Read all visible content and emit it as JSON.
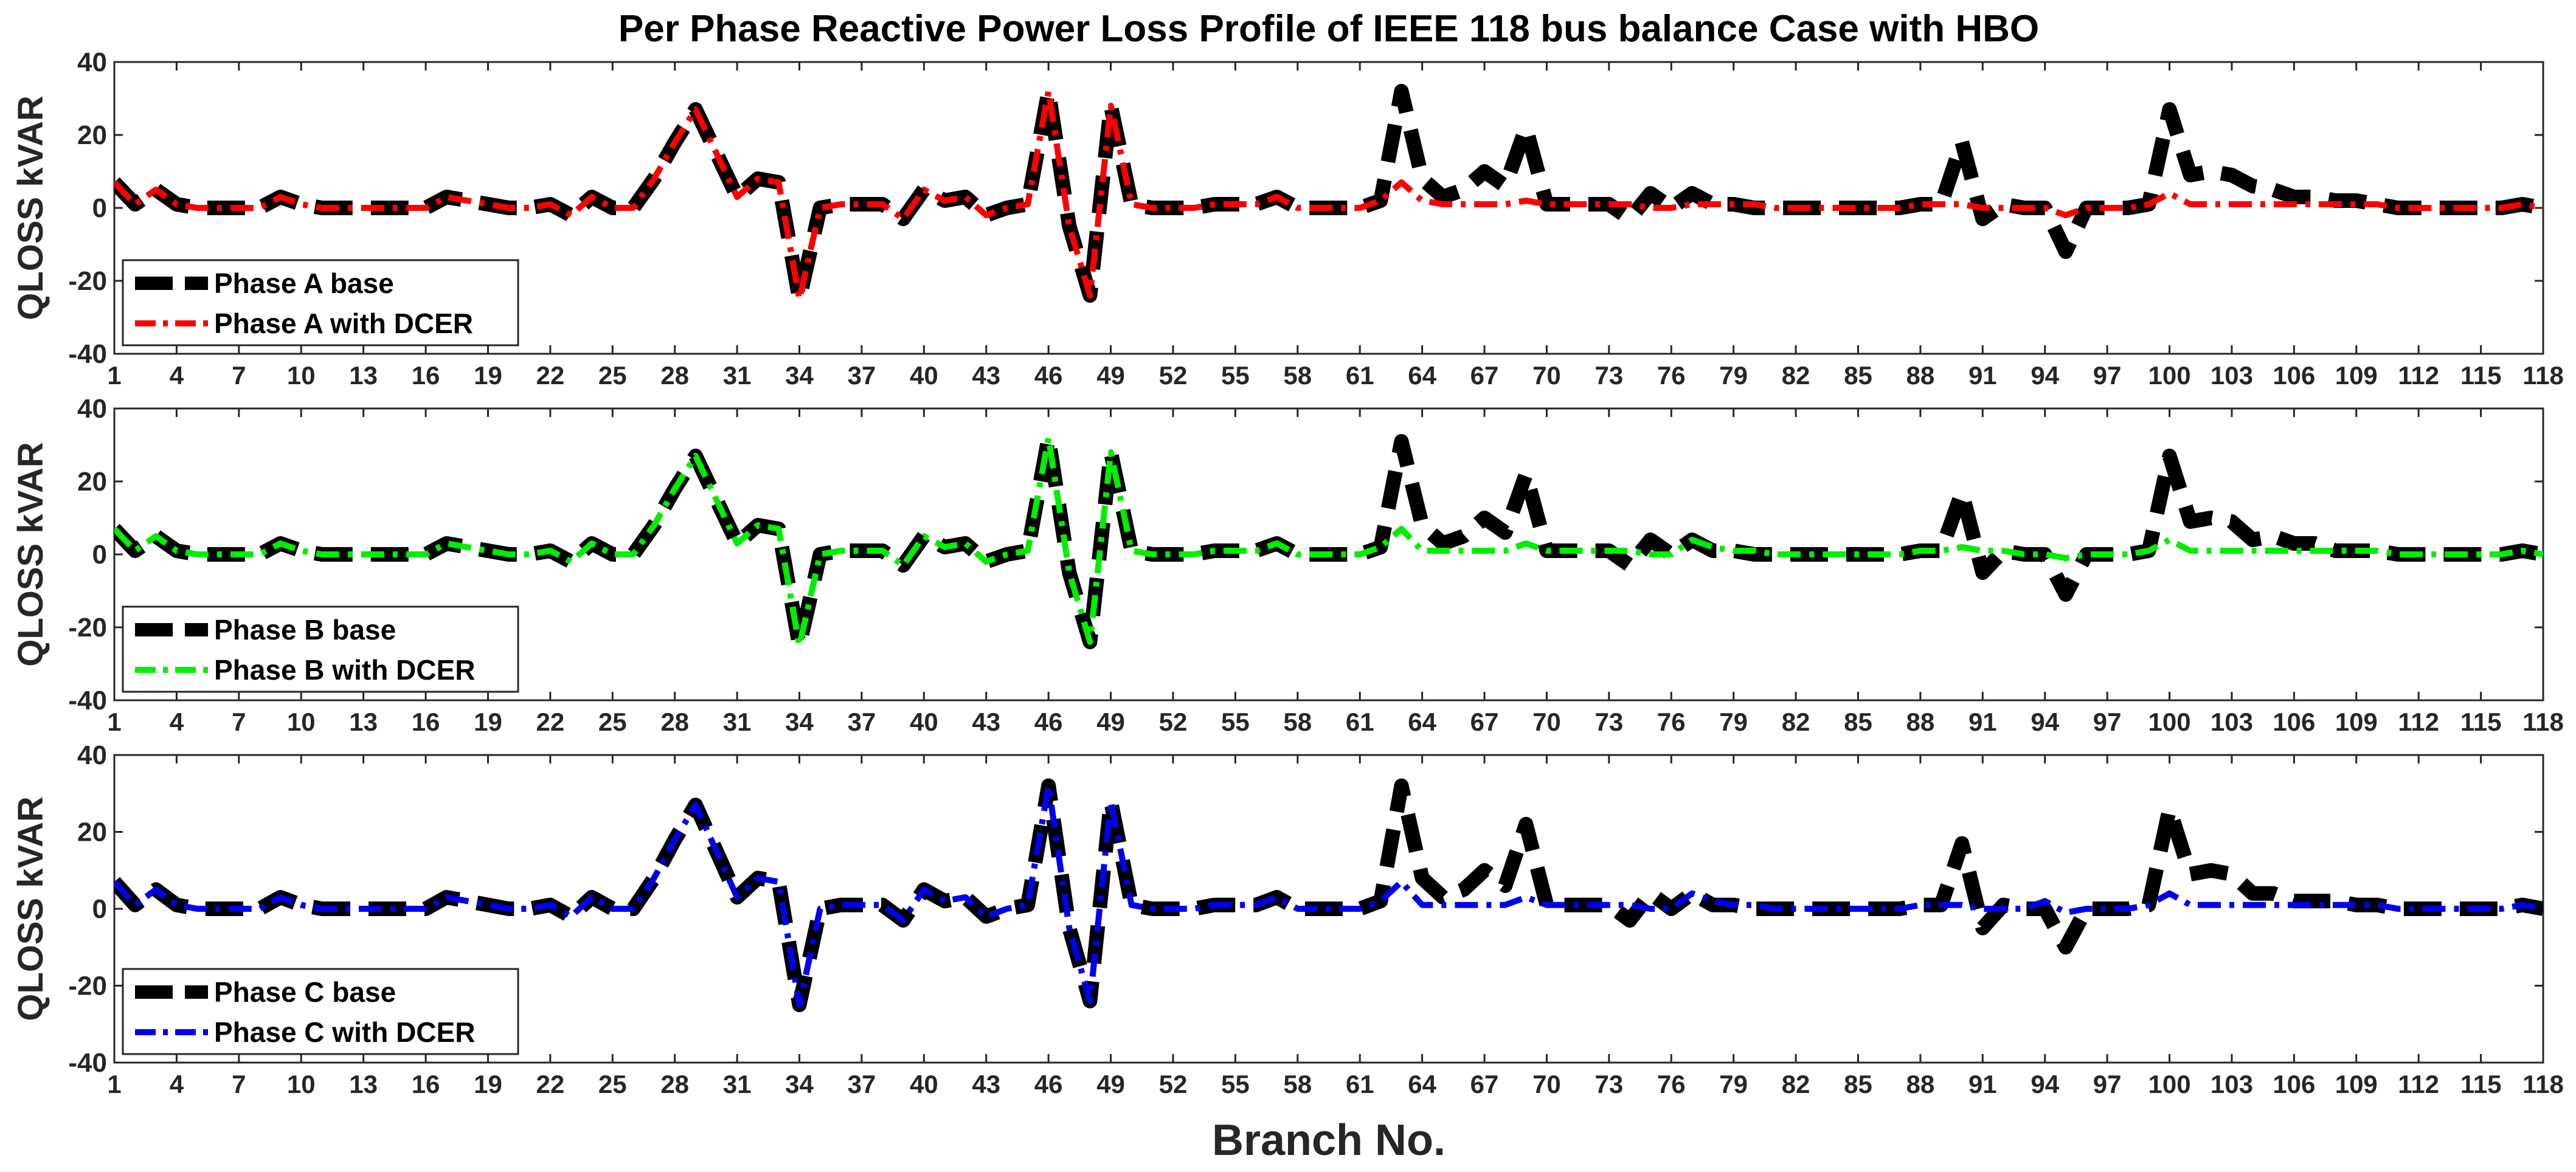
{
  "chart_data": {
    "type": "line",
    "title": "Per Phase Reactive Power Loss Profile of IEEE 118 bus balance Case with HBO",
    "xlabel": "Branch No.",
    "xlim": [
      1,
      118
    ],
    "xticks": [
      1,
      4,
      7,
      10,
      13,
      16,
      19,
      22,
      25,
      28,
      31,
      34,
      37,
      40,
      43,
      46,
      49,
      52,
      55,
      58,
      61,
      64,
      67,
      70,
      73,
      76,
      79,
      82,
      85,
      88,
      91,
      94,
      97,
      100,
      103,
      106,
      109,
      112,
      115,
      118
    ],
    "panels": [
      {
        "ylabel": "QLOSS  kVAR",
        "ylim": [
          -40,
          40
        ],
        "yticks": [
          -40,
          -20,
          0,
          20,
          40
        ],
        "legend_position": "bottom-left",
        "series": [
          {
            "name": "Phase A base",
            "color": "#000000",
            "style": "dashed",
            "values": [
              7,
              1,
              5,
              1,
              0,
              0,
              0,
              0,
              3,
              1,
              0,
              0,
              0,
              0,
              0,
              0,
              3,
              2,
              1,
              0,
              0,
              1,
              -2,
              3,
              0,
              0,
              8,
              18,
              27,
              15,
              3,
              8,
              7,
              -25,
              0,
              1,
              1,
              1,
              -3,
              5,
              2,
              3,
              -2,
              0,
              1,
              32,
              -5,
              -24,
              28,
              1,
              0,
              0,
              0,
              1,
              1,
              1,
              3,
              0,
              0,
              0,
              0,
              2,
              32,
              8,
              3,
              5,
              10,
              6,
              22,
              1,
              1,
              1,
              1,
              -3,
              4,
              0,
              4,
              1,
              1,
              0,
              0,
              0,
              0,
              0,
              0,
              0,
              0,
              1,
              1,
              18,
              -3,
              1,
              0,
              0,
              -12,
              0,
              0,
              0,
              1,
              27,
              9,
              10,
              9,
              6,
              5,
              3,
              3,
              2,
              2,
              1,
              0,
              0,
              0,
              0,
              0,
              0,
              1,
              0
            ]
          },
          {
            "name": "Phase A with DCER",
            "color": "#ff0000",
            "style": "dash-dot",
            "values": [
              7,
              1,
              5,
              1,
              0,
              0,
              0,
              0,
              3,
              1,
              0,
              0,
              0,
              0,
              0,
              0,
              3,
              2,
              1,
              0,
              0,
              1,
              -2,
              3,
              0,
              0,
              8,
              18,
              27,
              15,
              3,
              8,
              7,
              -25,
              0,
              1,
              1,
              1,
              -3,
              5,
              2,
              3,
              -2,
              0,
              1,
              32,
              -5,
              -24,
              28,
              1,
              0,
              0,
              0,
              1,
              1,
              1,
              3,
              0,
              0,
              0,
              0,
              2,
              7,
              2,
              1,
              1,
              1,
              1,
              2,
              1,
              1,
              1,
              1,
              1,
              0,
              0,
              1,
              1,
              1,
              1,
              0,
              0,
              0,
              0,
              0,
              0,
              0,
              1,
              1,
              1,
              0,
              0,
              0,
              0,
              -2,
              0,
              0,
              0,
              1,
              4,
              1,
              1,
              1,
              1,
              1,
              1,
              1,
              1,
              1,
              1,
              0,
              0,
              0,
              0,
              0,
              0,
              1,
              0
            ]
          }
        ]
      },
      {
        "ylabel": "QLOSS  kVAR",
        "ylim": [
          -40,
          40
        ],
        "yticks": [
          -40,
          -20,
          0,
          20,
          40
        ],
        "legend_position": "bottom-left",
        "series": [
          {
            "name": "Phase B base",
            "color": "#000000",
            "style": "dashed",
            "values": [
              7,
              1,
              5,
              1,
              0,
              0,
              0,
              0,
              3,
              1,
              0,
              0,
              0,
              0,
              0,
              0,
              3,
              2,
              1,
              0,
              0,
              1,
              -2,
              3,
              0,
              0,
              8,
              18,
              27,
              15,
              3,
              8,
              7,
              -25,
              0,
              1,
              1,
              1,
              -3,
              5,
              2,
              3,
              -2,
              0,
              1,
              32,
              -5,
              -24,
              28,
              1,
              0,
              0,
              0,
              1,
              1,
              1,
              3,
              0,
              0,
              0,
              0,
              2,
              31,
              8,
              3,
              5,
              10,
              6,
              22,
              1,
              1,
              1,
              1,
              -3,
              4,
              0,
              4,
              1,
              1,
              0,
              0,
              0,
              0,
              0,
              0,
              0,
              0,
              1,
              1,
              17,
              -5,
              1,
              0,
              0,
              -11,
              0,
              0,
              0,
              1,
              27,
              9,
              10,
              9,
              4,
              5,
              3,
              3,
              1,
              1,
              1,
              0,
              0,
              0,
              0,
              0,
              0,
              1,
              0
            ]
          },
          {
            "name": "Phase B with DCER",
            "color": "#00ee00",
            "style": "dash-dot",
            "values": [
              7,
              1,
              5,
              1,
              0,
              0,
              0,
              0,
              3,
              1,
              0,
              0,
              0,
              0,
              0,
              0,
              3,
              2,
              1,
              0,
              0,
              1,
              -2,
              3,
              0,
              0,
              8,
              18,
              27,
              15,
              3,
              8,
              7,
              -25,
              0,
              1,
              1,
              1,
              -3,
              5,
              2,
              3,
              -2,
              0,
              1,
              32,
              -5,
              -24,
              28,
              1,
              0,
              0,
              0,
              1,
              1,
              1,
              3,
              0,
              0,
              0,
              0,
              2,
              7,
              1,
              1,
              1,
              1,
              1,
              3,
              1,
              1,
              1,
              1,
              1,
              0,
              0,
              4,
              2,
              1,
              1,
              0,
              0,
              0,
              0,
              0,
              0,
              0,
              1,
              1,
              2,
              1,
              1,
              0,
              0,
              -1,
              0,
              0,
              0,
              1,
              4,
              1,
              1,
              1,
              1,
              1,
              1,
              1,
              1,
              1,
              1,
              0,
              0,
              0,
              0,
              0,
              0,
              1,
              0
            ]
          }
        ]
      },
      {
        "ylabel": "QLOSS  kVAR",
        "ylim": [
          -40,
          40
        ],
        "yticks": [
          -40,
          -20,
          0,
          20,
          40
        ],
        "legend_position": "bottom-left",
        "series": [
          {
            "name": "Phase C base",
            "color": "#000000",
            "style": "dashed",
            "values": [
              7,
              1,
              5,
              1,
              0,
              0,
              0,
              0,
              3,
              1,
              0,
              0,
              0,
              0,
              0,
              0,
              3,
              2,
              1,
              0,
              0,
              1,
              -2,
              3,
              0,
              0,
              8,
              18,
              27,
              15,
              3,
              8,
              7,
              -25,
              0,
              1,
              1,
              1,
              -3,
              5,
              2,
              3,
              -2,
              0,
              1,
              32,
              -5,
              -24,
              28,
              1,
              0,
              0,
              0,
              1,
              1,
              1,
              3,
              0,
              0,
              0,
              0,
              2,
              32,
              8,
              3,
              5,
              10,
              6,
              22,
              1,
              1,
              1,
              1,
              -3,
              4,
              0,
              4,
              1,
              1,
              0,
              0,
              0,
              0,
              0,
              0,
              0,
              0,
              1,
              1,
              17,
              -5,
              1,
              0,
              0,
              -10,
              0,
              0,
              0,
              1,
              26,
              9,
              10,
              9,
              4,
              4,
              2,
              2,
              2,
              1,
              1,
              0,
              0,
              0,
              0,
              0,
              0,
              1,
              0
            ]
          },
          {
            "name": "Phase C with DCER",
            "color": "#0000ee",
            "style": "dash-dot",
            "values": [
              7,
              1,
              5,
              1,
              0,
              0,
              0,
              0,
              3,
              1,
              0,
              0,
              0,
              0,
              0,
              0,
              3,
              2,
              1,
              0,
              0,
              1,
              -2,
              3,
              0,
              0,
              8,
              18,
              27,
              15,
              3,
              8,
              7,
              -25,
              0,
              1,
              1,
              1,
              -3,
              5,
              2,
              3,
              -2,
              0,
              1,
              32,
              -5,
              -24,
              28,
              1,
              0,
              0,
              0,
              1,
              1,
              1,
              3,
              0,
              0,
              0,
              0,
              2,
              7,
              1,
              1,
              1,
              1,
              1,
              3,
              1,
              1,
              1,
              1,
              1,
              0,
              0,
              4,
              2,
              1,
              1,
              0,
              0,
              0,
              0,
              0,
              0,
              0,
              1,
              1,
              1,
              0,
              0,
              0,
              2,
              -1,
              0,
              0,
              0,
              1,
              4,
              1,
              1,
              1,
              1,
              1,
              1,
              1,
              1,
              1,
              1,
              0,
              0,
              0,
              0,
              0,
              0,
              1,
              0
            ]
          }
        ]
      }
    ]
  }
}
